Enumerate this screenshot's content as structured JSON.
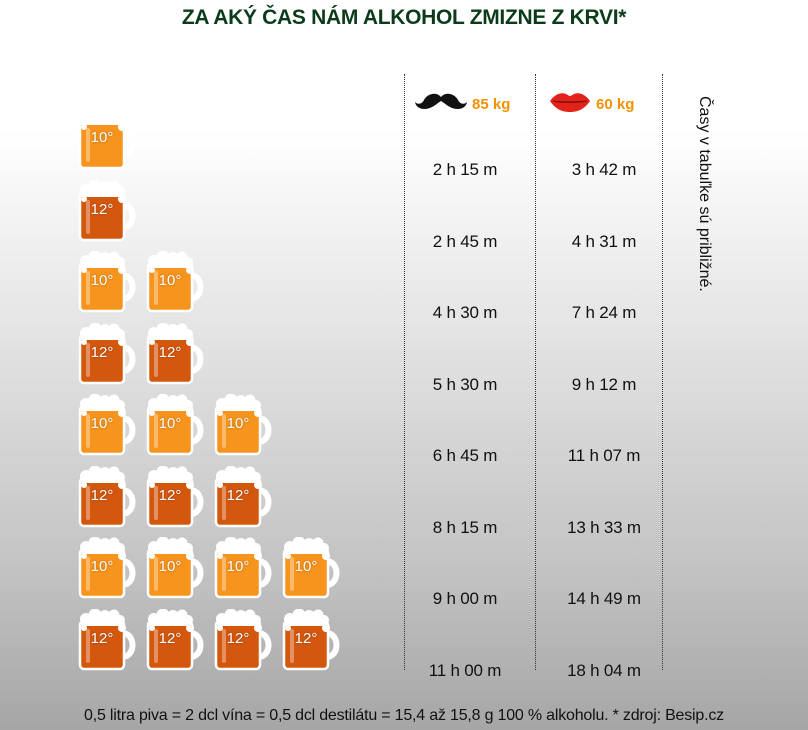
{
  "title": "ZA AKÝ ČAS NÁM ALKOHOL ZMIZNE Z KRVI*",
  "header": {
    "male": {
      "icon": "mustache-icon",
      "label": "85 kg"
    },
    "female": {
      "icon": "lips-icon",
      "label": "60 kg"
    }
  },
  "side_note": "Časy v tabuľke sú približné.",
  "rows": [
    {
      "beer_count": 1,
      "degree": "10°",
      "male_time": "2 h 15 m",
      "female_time": "3 h 42 m"
    },
    {
      "beer_count": 1,
      "degree": "12°",
      "male_time": "2 h 45 m",
      "female_time": "4 h 31 m"
    },
    {
      "beer_count": 2,
      "degree": "10°",
      "male_time": "4 h 30 m",
      "female_time": "7 h 24 m"
    },
    {
      "beer_count": 2,
      "degree": "12°",
      "male_time": "5 h 30 m",
      "female_time": "9 h 12 m"
    },
    {
      "beer_count": 3,
      "degree": "10°",
      "male_time": "6 h 45 m",
      "female_time": "11 h 07 m"
    },
    {
      "beer_count": 3,
      "degree": "12°",
      "male_time": "8 h 15 m",
      "female_time": "13 h 33 m"
    },
    {
      "beer_count": 4,
      "degree": "10°",
      "male_time": "9 h 00 m",
      "female_time": "14 h 49 m"
    },
    {
      "beer_count": 4,
      "degree": "12°",
      "male_time": "11 h 00 m",
      "female_time": "18 h 04 m"
    }
  ],
  "colors": {
    "beer_10": "#f7941d",
    "beer_12": "#d4570e",
    "title": "#0b3b1a",
    "accent": "#f39200",
    "lips": "#e2231a"
  },
  "footer": "0,5 litra piva = 2 dcl vína = 0,5 dcl destilátu = 15,4 až 15,8 g 100 % alkoholu. * zdroj: Besip.cz"
}
